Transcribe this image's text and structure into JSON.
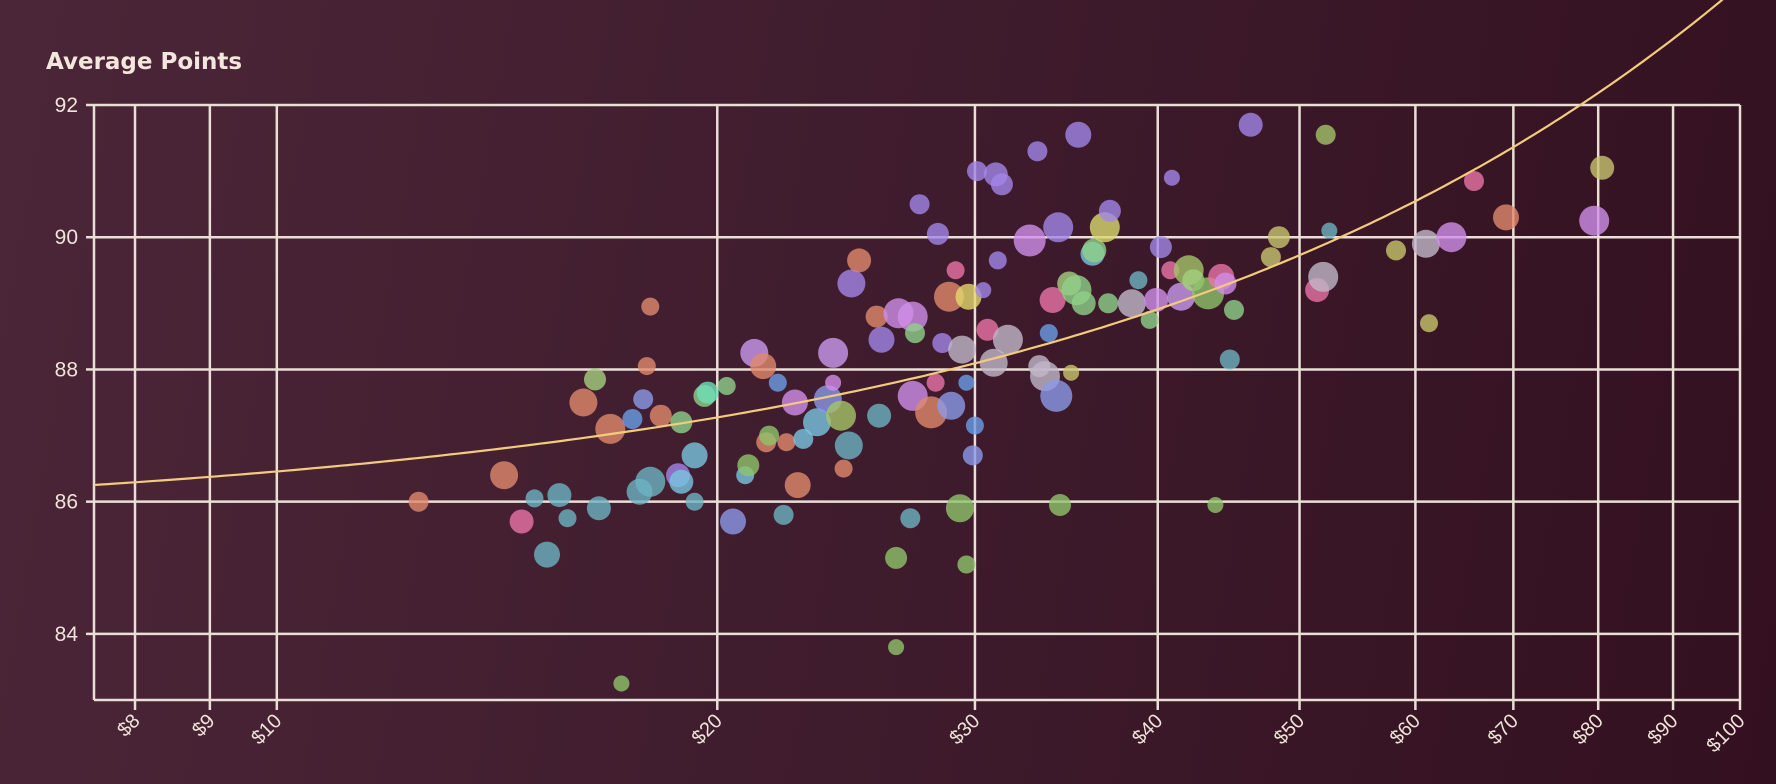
{
  "chart_data": {
    "type": "scatter",
    "title": "Average Points",
    "x_scale": "log",
    "xlim": [
      7.5,
      100
    ],
    "ylim": [
      83,
      92
    ],
    "grid": true,
    "x_ticks": [
      {
        "value": 8,
        "label": "$8"
      },
      {
        "value": 9,
        "label": "$9"
      },
      {
        "value": 10,
        "label": "$10"
      },
      {
        "value": 20,
        "label": "$20"
      },
      {
        "value": 30,
        "label": "$30"
      },
      {
        "value": 40,
        "label": "$40"
      },
      {
        "value": 50,
        "label": "$50"
      },
      {
        "value": 60,
        "label": "$60"
      },
      {
        "value": 70,
        "label": "$70"
      },
      {
        "value": 80,
        "label": "$80"
      },
      {
        "value": 90,
        "label": "$90"
      },
      {
        "value": 100,
        "label": "$100"
      }
    ],
    "y_ticks": [
      {
        "value": 84,
        "label": "84"
      },
      {
        "value": 86,
        "label": "86"
      },
      {
        "value": 88,
        "label": "88"
      },
      {
        "value": 90,
        "label": "90"
      },
      {
        "value": 92,
        "label": "92"
      }
    ],
    "trend_line": {
      "color": "#f2cc7c"
    },
    "points": [
      {
        "x": 12.5,
        "y": 86.0,
        "size": 10,
        "color": "#e08a6c"
      },
      {
        "x": 14.3,
        "y": 86.4,
        "size": 14,
        "color": "#e08a6c"
      },
      {
        "x": 15.0,
        "y": 86.05,
        "size": 9,
        "color": "#6bb3c2"
      },
      {
        "x": 14.7,
        "y": 85.7,
        "size": 12,
        "color": "#e874a6"
      },
      {
        "x": 15.3,
        "y": 85.2,
        "size": 13,
        "color": "#6bb3c2"
      },
      {
        "x": 15.6,
        "y": 86.1,
        "size": 12,
        "color": "#6bb3c2"
      },
      {
        "x": 15.8,
        "y": 85.75,
        "size": 9,
        "color": "#6bb3c2"
      },
      {
        "x": 16.2,
        "y": 87.5,
        "size": 14,
        "color": "#e08a6c"
      },
      {
        "x": 16.5,
        "y": 87.85,
        "size": 11,
        "color": "#a4cf7e"
      },
      {
        "x": 16.6,
        "y": 85.9,
        "size": 12,
        "color": "#6bb3c2"
      },
      {
        "x": 16.9,
        "y": 87.1,
        "size": 15,
        "color": "#e08a6c"
      },
      {
        "x": 17.2,
        "y": 83.25,
        "size": 8,
        "color": "#8fc46a"
      },
      {
        "x": 17.5,
        "y": 87.25,
        "size": 10,
        "color": "#6b9ee8"
      },
      {
        "x": 17.8,
        "y": 87.55,
        "size": 10,
        "color": "#8b9ae8"
      },
      {
        "x": 17.7,
        "y": 86.15,
        "size": 13,
        "color": "#6bb3c2"
      },
      {
        "x": 18.0,
        "y": 86.3,
        "size": 15,
        "color": "#6bb3c2"
      },
      {
        "x": 17.9,
        "y": 88.05,
        "size": 9,
        "color": "#e08a6c"
      },
      {
        "x": 18.0,
        "y": 88.95,
        "size": 9,
        "color": "#e08a6c"
      },
      {
        "x": 18.3,
        "y": 87.3,
        "size": 11,
        "color": "#e08a6c"
      },
      {
        "x": 18.8,
        "y": 86.4,
        "size": 12,
        "color": "#a386e8"
      },
      {
        "x": 18.9,
        "y": 86.3,
        "size": 12,
        "color": "#78c6e0"
      },
      {
        "x": 18.9,
        "y": 87.2,
        "size": 11,
        "color": "#8fd18a"
      },
      {
        "x": 19.3,
        "y": 86.0,
        "size": 9,
        "color": "#6bb3c2"
      },
      {
        "x": 19.3,
        "y": 86.7,
        "size": 13,
        "color": "#78c6e0"
      },
      {
        "x": 19.6,
        "y": 87.6,
        "size": 11,
        "color": "#8fd18a"
      },
      {
        "x": 19.7,
        "y": 87.65,
        "size": 11,
        "color": "#6fe0b8"
      },
      {
        "x": 20.3,
        "y": 87.75,
        "size": 9,
        "color": "#8fd18a"
      },
      {
        "x": 20.5,
        "y": 85.7,
        "size": 13,
        "color": "#8b9ae8"
      },
      {
        "x": 20.9,
        "y": 86.4,
        "size": 9,
        "color": "#78c6e0"
      },
      {
        "x": 21.0,
        "y": 86.55,
        "size": 11,
        "color": "#8fc46a"
      },
      {
        "x": 21.2,
        "y": 88.25,
        "size": 14,
        "color": "#c99aee"
      },
      {
        "x": 21.5,
        "y": 88.05,
        "size": 13,
        "color": "#e08a6c"
      },
      {
        "x": 21.6,
        "y": 86.9,
        "size": 10,
        "color": "#e08a6c"
      },
      {
        "x": 21.7,
        "y": 87.0,
        "size": 10,
        "color": "#8fc46a"
      },
      {
        "x": 22.0,
        "y": 87.8,
        "size": 9,
        "color": "#6b9ee8"
      },
      {
        "x": 22.2,
        "y": 85.8,
        "size": 10,
        "color": "#6bb3c2"
      },
      {
        "x": 22.3,
        "y": 86.9,
        "size": 9,
        "color": "#e08a6c"
      },
      {
        "x": 22.6,
        "y": 87.5,
        "size": 13,
        "color": "#d08ee8"
      },
      {
        "x": 22.7,
        "y": 86.25,
        "size": 13,
        "color": "#e08a6c"
      },
      {
        "x": 22.9,
        "y": 86.95,
        "size": 10,
        "color": "#78c6e0"
      },
      {
        "x": 23.4,
        "y": 87.2,
        "size": 14,
        "color": "#78c6e0"
      },
      {
        "x": 23.8,
        "y": 87.55,
        "size": 14,
        "color": "#8b9ae8"
      },
      {
        "x": 24.0,
        "y": 88.25,
        "size": 15,
        "color": "#c99aee"
      },
      {
        "x": 24.0,
        "y": 87.8,
        "size": 8,
        "color": "#d08ee8"
      },
      {
        "x": 24.3,
        "y": 87.3,
        "size": 15,
        "color": "#a4c468"
      },
      {
        "x": 24.4,
        "y": 86.5,
        "size": 9,
        "color": "#e08a6c"
      },
      {
        "x": 24.6,
        "y": 86.85,
        "size": 14,
        "color": "#6bb3c2"
      },
      {
        "x": 24.7,
        "y": 89.3,
        "size": 14,
        "color": "#a386e8"
      },
      {
        "x": 25.0,
        "y": 89.65,
        "size": 12,
        "color": "#e08a6c"
      },
      {
        "x": 25.7,
        "y": 88.8,
        "size": 11,
        "color": "#e08a6c"
      },
      {
        "x": 25.8,
        "y": 87.3,
        "size": 12,
        "color": "#6bb3c2"
      },
      {
        "x": 25.9,
        "y": 88.45,
        "size": 13,
        "color": "#a386e8"
      },
      {
        "x": 26.5,
        "y": 85.15,
        "size": 11,
        "color": "#8fc46a"
      },
      {
        "x": 26.5,
        "y": 83.8,
        "size": 8,
        "color": "#8fc46a"
      },
      {
        "x": 26.6,
        "y": 88.85,
        "size": 15,
        "color": "#d08ee8"
      },
      {
        "x": 27.1,
        "y": 85.75,
        "size": 10,
        "color": "#6bb3c2"
      },
      {
        "x": 27.2,
        "y": 87.6,
        "size": 15,
        "color": "#d08ee8"
      },
      {
        "x": 27.2,
        "y": 88.8,
        "size": 15,
        "color": "#d08ee8"
      },
      {
        "x": 27.3,
        "y": 88.55,
        "size": 10,
        "color": "#8fd18a"
      },
      {
        "x": 27.5,
        "y": 90.5,
        "size": 10,
        "color": "#a386e8"
      },
      {
        "x": 28.0,
        "y": 87.35,
        "size": 16,
        "color": "#e08a6c"
      },
      {
        "x": 28.2,
        "y": 87.8,
        "size": 9,
        "color": "#e874a6"
      },
      {
        "x": 28.3,
        "y": 90.05,
        "size": 11,
        "color": "#a386e8"
      },
      {
        "x": 28.5,
        "y": 88.4,
        "size": 10,
        "color": "#a386e8"
      },
      {
        "x": 28.8,
        "y": 89.1,
        "size": 15,
        "color": "#e08a6c"
      },
      {
        "x": 28.9,
        "y": 87.45,
        "size": 14,
        "color": "#8b9ae8"
      },
      {
        "x": 29.1,
        "y": 89.5,
        "size": 9,
        "color": "#e874a6"
      },
      {
        "x": 29.3,
        "y": 85.9,
        "size": 14,
        "color": "#8fc46a"
      },
      {
        "x": 29.4,
        "y": 88.3,
        "size": 14,
        "color": "#c0b8c8"
      },
      {
        "x": 29.6,
        "y": 85.05,
        "size": 9,
        "color": "#8fc46a"
      },
      {
        "x": 29.6,
        "y": 87.8,
        "size": 8,
        "color": "#6b9ee8"
      },
      {
        "x": 29.7,
        "y": 89.1,
        "size": 13,
        "color": "#e4d86e"
      },
      {
        "x": 29.9,
        "y": 86.7,
        "size": 10,
        "color": "#8b9ae8"
      },
      {
        "x": 30.0,
        "y": 87.15,
        "size": 9,
        "color": "#6b9ee8"
      },
      {
        "x": 30.1,
        "y": 91.0,
        "size": 10,
        "color": "#a386e8"
      },
      {
        "x": 30.4,
        "y": 89.2,
        "size": 8,
        "color": "#a386e8"
      },
      {
        "x": 30.6,
        "y": 88.6,
        "size": 11,
        "color": "#e874a6"
      },
      {
        "x": 30.9,
        "y": 88.1,
        "size": 14,
        "color": "#c0b8c8"
      },
      {
        "x": 31.0,
        "y": 90.95,
        "size": 12,
        "color": "#a386e8"
      },
      {
        "x": 31.1,
        "y": 89.65,
        "size": 9,
        "color": "#a386e8"
      },
      {
        "x": 31.3,
        "y": 90.8,
        "size": 11,
        "color": "#a386e8"
      },
      {
        "x": 31.6,
        "y": 88.45,
        "size": 15,
        "color": "#c0b8c8"
      },
      {
        "x": 32.7,
        "y": 89.95,
        "size": 16,
        "color": "#d08ee8"
      },
      {
        "x": 33.1,
        "y": 91.3,
        "size": 10,
        "color": "#a386e8"
      },
      {
        "x": 33.2,
        "y": 88.05,
        "size": 11,
        "color": "#c0b8c8"
      },
      {
        "x": 33.5,
        "y": 87.9,
        "size": 15,
        "color": "#c0b8c8"
      },
      {
        "x": 33.7,
        "y": 88.55,
        "size": 9,
        "color": "#6b9ee8"
      },
      {
        "x": 33.9,
        "y": 89.05,
        "size": 13,
        "color": "#e874a6"
      },
      {
        "x": 34.1,
        "y": 87.6,
        "size": 16,
        "color": "#8b9ae8"
      },
      {
        "x": 34.2,
        "y": 90.15,
        "size": 15,
        "color": "#a386e8"
      },
      {
        "x": 34.3,
        "y": 85.95,
        "size": 11,
        "color": "#8fc46a"
      },
      {
        "x": 34.8,
        "y": 89.3,
        "size": 12,
        "color": "#a4cf7e"
      },
      {
        "x": 34.9,
        "y": 87.95,
        "size": 8,
        "color": "#c8c46e"
      },
      {
        "x": 35.2,
        "y": 89.2,
        "size": 15,
        "color": "#8fd18a"
      },
      {
        "x": 35.3,
        "y": 91.55,
        "size": 13,
        "color": "#a386e8"
      },
      {
        "x": 35.6,
        "y": 89.0,
        "size": 12,
        "color": "#8fd18a"
      },
      {
        "x": 36.1,
        "y": 89.75,
        "size": 12,
        "color": "#78c6e0"
      },
      {
        "x": 36.2,
        "y": 89.8,
        "size": 12,
        "color": "#8fd18a"
      },
      {
        "x": 36.8,
        "y": 90.15,
        "size": 15,
        "color": "#d8d86e"
      },
      {
        "x": 37.0,
        "y": 89.0,
        "size": 10,
        "color": "#8fd18a"
      },
      {
        "x": 37.1,
        "y": 90.4,
        "size": 11,
        "color": "#a386e8"
      },
      {
        "x": 38.4,
        "y": 89.0,
        "size": 14,
        "color": "#c0b8c8"
      },
      {
        "x": 38.8,
        "y": 89.35,
        "size": 9,
        "color": "#6bb3c2"
      },
      {
        "x": 39.5,
        "y": 88.75,
        "size": 9,
        "color": "#8fd18a"
      },
      {
        "x": 39.9,
        "y": 89.05,
        "size": 12,
        "color": "#d08ee8"
      },
      {
        "x": 40.2,
        "y": 89.85,
        "size": 11,
        "color": "#a386e8"
      },
      {
        "x": 40.8,
        "y": 89.5,
        "size": 9,
        "color": "#e874a6"
      },
      {
        "x": 40.9,
        "y": 90.9,
        "size": 8,
        "color": "#a386e8"
      },
      {
        "x": 41.5,
        "y": 89.1,
        "size": 14,
        "color": "#c99aee"
      },
      {
        "x": 42.0,
        "y": 89.5,
        "size": 15,
        "color": "#a4c468"
      },
      {
        "x": 42.3,
        "y": 89.35,
        "size": 11,
        "color": "#a4cf7e"
      },
      {
        "x": 43.3,
        "y": 89.15,
        "size": 16,
        "color": "#8fc46a"
      },
      {
        "x": 43.8,
        "y": 85.95,
        "size": 8,
        "color": "#8fc46a"
      },
      {
        "x": 44.2,
        "y": 89.4,
        "size": 13,
        "color": "#e874a6"
      },
      {
        "x": 44.5,
        "y": 89.3,
        "size": 11,
        "color": "#d08ee8"
      },
      {
        "x": 44.8,
        "y": 88.15,
        "size": 10,
        "color": "#6bb3c2"
      },
      {
        "x": 45.1,
        "y": 88.9,
        "size": 10,
        "color": "#8fd18a"
      },
      {
        "x": 46.3,
        "y": 91.7,
        "size": 12,
        "color": "#a386e8"
      },
      {
        "x": 47.8,
        "y": 89.7,
        "size": 10,
        "color": "#c8c46e"
      },
      {
        "x": 48.4,
        "y": 90.0,
        "size": 11,
        "color": "#c8c46e"
      },
      {
        "x": 51.4,
        "y": 89.2,
        "size": 12,
        "color": "#e874a6"
      },
      {
        "x": 51.9,
        "y": 89.4,
        "size": 15,
        "color": "#c0b8c8"
      },
      {
        "x": 52.1,
        "y": 91.55,
        "size": 10,
        "color": "#a4c468"
      },
      {
        "x": 52.4,
        "y": 90.1,
        "size": 8,
        "color": "#6bb3c2"
      },
      {
        "x": 58.2,
        "y": 89.8,
        "size": 10,
        "color": "#c8c46e"
      },
      {
        "x": 61.0,
        "y": 89.9,
        "size": 14,
        "color": "#c0b8c8"
      },
      {
        "x": 61.3,
        "y": 88.7,
        "size": 9,
        "color": "#c8c46e"
      },
      {
        "x": 63.5,
        "y": 90.0,
        "size": 15,
        "color": "#d08ee8"
      },
      {
        "x": 65.8,
        "y": 90.85,
        "size": 10,
        "color": "#e874a6"
      },
      {
        "x": 69.2,
        "y": 90.3,
        "size": 13,
        "color": "#e08a6c"
      },
      {
        "x": 79.5,
        "y": 90.25,
        "size": 15,
        "color": "#d08ee8"
      },
      {
        "x": 80.5,
        "y": 91.05,
        "size": 12,
        "color": "#c8c46e"
      }
    ]
  }
}
